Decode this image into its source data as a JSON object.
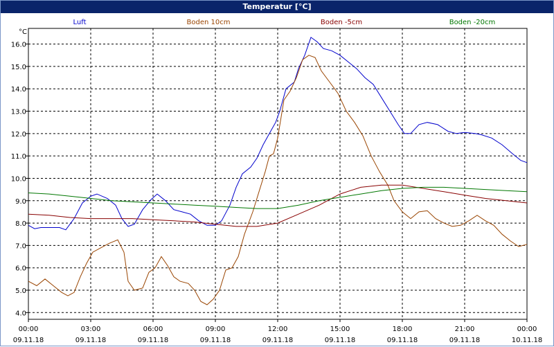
{
  "chart_data": {
    "type": "line",
    "title": "Temperatur [°C]",
    "ylabel": "°C",
    "ylim": [
      3.7,
      16.7
    ],
    "xlim": [
      0,
      24
    ],
    "grid": true,
    "legend_position": "top",
    "yticks": [
      4.0,
      5.0,
      6.0,
      7.0,
      8.0,
      9.0,
      10.0,
      11.0,
      12.0,
      13.0,
      14.0,
      15.0,
      16.0
    ],
    "xticks": [
      {
        "x": 0,
        "time": "00:00",
        "date": "09.11.18"
      },
      {
        "x": 3,
        "time": "03:00",
        "date": "09.11.18"
      },
      {
        "x": 6,
        "time": "06:00",
        "date": "09.11.18"
      },
      {
        "x": 9,
        "time": "09:00",
        "date": "09.11.18"
      },
      {
        "x": 12,
        "time": "12:00",
        "date": "09.11.18"
      },
      {
        "x": 15,
        "time": "15:00",
        "date": "09.11.18"
      },
      {
        "x": 18,
        "time": "18:00",
        "date": "09.11.18"
      },
      {
        "x": 21,
        "time": "21:00",
        "date": "09.11.18"
      },
      {
        "x": 24,
        "time": "00:00",
        "date": "10.11.18"
      }
    ],
    "series": [
      {
        "name": "Luft",
        "color": "#0000cc",
        "points": [
          [
            0,
            7.9
          ],
          [
            0.3,
            7.75
          ],
          [
            0.6,
            7.8
          ],
          [
            1,
            7.8
          ],
          [
            1.5,
            7.8
          ],
          [
            1.8,
            7.7
          ],
          [
            2.2,
            8.2
          ],
          [
            2.6,
            8.9
          ],
          [
            3,
            9.2
          ],
          [
            3.3,
            9.3
          ],
          [
            3.8,
            9.1
          ],
          [
            4.2,
            8.8
          ],
          [
            4.5,
            8.2
          ],
          [
            4.8,
            7.85
          ],
          [
            5.1,
            7.95
          ],
          [
            5.5,
            8.6
          ],
          [
            5.9,
            9.05
          ],
          [
            6.2,
            9.3
          ],
          [
            6.6,
            9.0
          ],
          [
            7,
            8.6
          ],
          [
            7.4,
            8.5
          ],
          [
            7.8,
            8.4
          ],
          [
            8.2,
            8.1
          ],
          [
            8.6,
            7.9
          ],
          [
            9,
            7.9
          ],
          [
            9.3,
            8.1
          ],
          [
            9.7,
            8.8
          ],
          [
            10,
            9.6
          ],
          [
            10.3,
            10.2
          ],
          [
            10.7,
            10.5
          ],
          [
            11,
            10.9
          ],
          [
            11.3,
            11.5
          ],
          [
            11.6,
            12.0
          ],
          [
            11.9,
            12.5
          ],
          [
            12.1,
            13.0
          ],
          [
            12.4,
            14.0
          ],
          [
            12.8,
            14.3
          ],
          [
            13,
            14.9
          ],
          [
            13.3,
            15.5
          ],
          [
            13.6,
            16.3
          ],
          [
            13.9,
            16.1
          ],
          [
            14.2,
            15.8
          ],
          [
            14.6,
            15.7
          ],
          [
            15,
            15.5
          ],
          [
            15.4,
            15.2
          ],
          [
            15.8,
            14.9
          ],
          [
            16.2,
            14.5
          ],
          [
            16.6,
            14.2
          ],
          [
            17,
            13.6
          ],
          [
            17.4,
            13.0
          ],
          [
            17.8,
            12.4
          ],
          [
            18.1,
            12.0
          ],
          [
            18.4,
            12.0
          ],
          [
            18.8,
            12.4
          ],
          [
            19.2,
            12.5
          ],
          [
            19.7,
            12.4
          ],
          [
            20.2,
            12.1
          ],
          [
            20.6,
            12.0
          ],
          [
            21,
            12.05
          ],
          [
            21.5,
            12.0
          ],
          [
            21.8,
            11.95
          ],
          [
            22.3,
            11.8
          ],
          [
            22.8,
            11.5
          ],
          [
            23.3,
            11.1
          ],
          [
            23.7,
            10.8
          ],
          [
            24,
            10.7
          ]
        ]
      },
      {
        "name": "Boden 10cm",
        "color": "#994400",
        "points": [
          [
            0,
            5.4
          ],
          [
            0.4,
            5.2
          ],
          [
            0.8,
            5.5
          ],
          [
            1.2,
            5.2
          ],
          [
            1.6,
            4.9
          ],
          [
            1.9,
            4.75
          ],
          [
            2.2,
            4.9
          ],
          [
            2.5,
            5.6
          ],
          [
            2.8,
            6.2
          ],
          [
            3.1,
            6.7
          ],
          [
            3.5,
            6.9
          ],
          [
            3.9,
            7.1
          ],
          [
            4.3,
            7.25
          ],
          [
            4.6,
            6.7
          ],
          [
            4.8,
            5.4
          ],
          [
            5.1,
            5.0
          ],
          [
            5.5,
            5.1
          ],
          [
            5.8,
            5.8
          ],
          [
            6.1,
            6.0
          ],
          [
            6.4,
            6.5
          ],
          [
            6.7,
            6.1
          ],
          [
            7,
            5.6
          ],
          [
            7.3,
            5.4
          ],
          [
            7.7,
            5.3
          ],
          [
            8,
            5.0
          ],
          [
            8.3,
            4.5
          ],
          [
            8.6,
            4.35
          ],
          [
            8.9,
            4.6
          ],
          [
            9.2,
            5.0
          ],
          [
            9.5,
            5.9
          ],
          [
            9.8,
            6.0
          ],
          [
            10.1,
            6.5
          ],
          [
            10.4,
            7.5
          ],
          [
            10.8,
            8.5
          ],
          [
            11.1,
            9.4
          ],
          [
            11.4,
            10.3
          ],
          [
            11.6,
            11.0
          ],
          [
            11.8,
            11.1
          ],
          [
            12,
            11.8
          ],
          [
            12.3,
            13.5
          ],
          [
            12.6,
            13.9
          ],
          [
            12.9,
            14.5
          ],
          [
            13.2,
            15.3
          ],
          [
            13.5,
            15.5
          ],
          [
            13.8,
            15.4
          ],
          [
            14.1,
            14.8
          ],
          [
            14.5,
            14.3
          ],
          [
            14.9,
            13.8
          ],
          [
            15.3,
            13.0
          ],
          [
            15.7,
            12.5
          ],
          [
            16.1,
            11.9
          ],
          [
            16.5,
            11.0
          ],
          [
            16.9,
            10.3
          ],
          [
            17.3,
            9.7
          ],
          [
            17.6,
            9.0
          ],
          [
            18,
            8.5
          ],
          [
            18.4,
            8.2
          ],
          [
            18.8,
            8.5
          ],
          [
            19.2,
            8.55
          ],
          [
            19.6,
            8.2
          ],
          [
            20,
            8.0
          ],
          [
            20.4,
            7.85
          ],
          [
            20.8,
            7.9
          ],
          [
            21.2,
            8.1
          ],
          [
            21.6,
            8.35
          ],
          [
            22,
            8.1
          ],
          [
            22.4,
            7.9
          ],
          [
            22.8,
            7.5
          ],
          [
            23.2,
            7.2
          ],
          [
            23.6,
            6.95
          ],
          [
            24,
            7.05
          ]
        ]
      },
      {
        "name": "Boden -5cm",
        "color": "#880000",
        "points": [
          [
            0,
            8.4
          ],
          [
            1,
            8.35
          ],
          [
            2,
            8.25
          ],
          [
            3,
            8.2
          ],
          [
            4,
            8.2
          ],
          [
            5,
            8.2
          ],
          [
            6,
            8.15
          ],
          [
            7,
            8.1
          ],
          [
            8,
            8.05
          ],
          [
            9,
            7.95
          ],
          [
            10,
            7.85
          ],
          [
            11,
            7.85
          ],
          [
            12,
            8.0
          ],
          [
            13,
            8.4
          ],
          [
            14,
            8.8
          ],
          [
            15,
            9.3
          ],
          [
            16,
            9.6
          ],
          [
            17,
            9.7
          ],
          [
            18,
            9.7
          ],
          [
            19,
            9.55
          ],
          [
            20,
            9.4
          ],
          [
            21,
            9.25
          ],
          [
            22,
            9.1
          ],
          [
            23,
            9.0
          ],
          [
            24,
            8.9
          ]
        ]
      },
      {
        "name": "Boden -20cm",
        "color": "#007700",
        "points": [
          [
            0,
            9.35
          ],
          [
            1,
            9.3
          ],
          [
            2,
            9.2
          ],
          [
            3,
            9.1
          ],
          [
            4,
            9.0
          ],
          [
            5,
            8.95
          ],
          [
            6,
            8.9
          ],
          [
            7,
            8.85
          ],
          [
            8,
            8.8
          ],
          [
            9,
            8.75
          ],
          [
            10,
            8.7
          ],
          [
            11,
            8.65
          ],
          [
            12,
            8.65
          ],
          [
            13,
            8.8
          ],
          [
            14,
            9.0
          ],
          [
            15,
            9.15
          ],
          [
            16,
            9.3
          ],
          [
            17,
            9.45
          ],
          [
            18,
            9.55
          ],
          [
            19,
            9.6
          ],
          [
            20,
            9.6
          ],
          [
            21,
            9.55
          ],
          [
            22,
            9.5
          ],
          [
            23,
            9.45
          ],
          [
            24,
            9.4
          ]
        ]
      }
    ]
  }
}
